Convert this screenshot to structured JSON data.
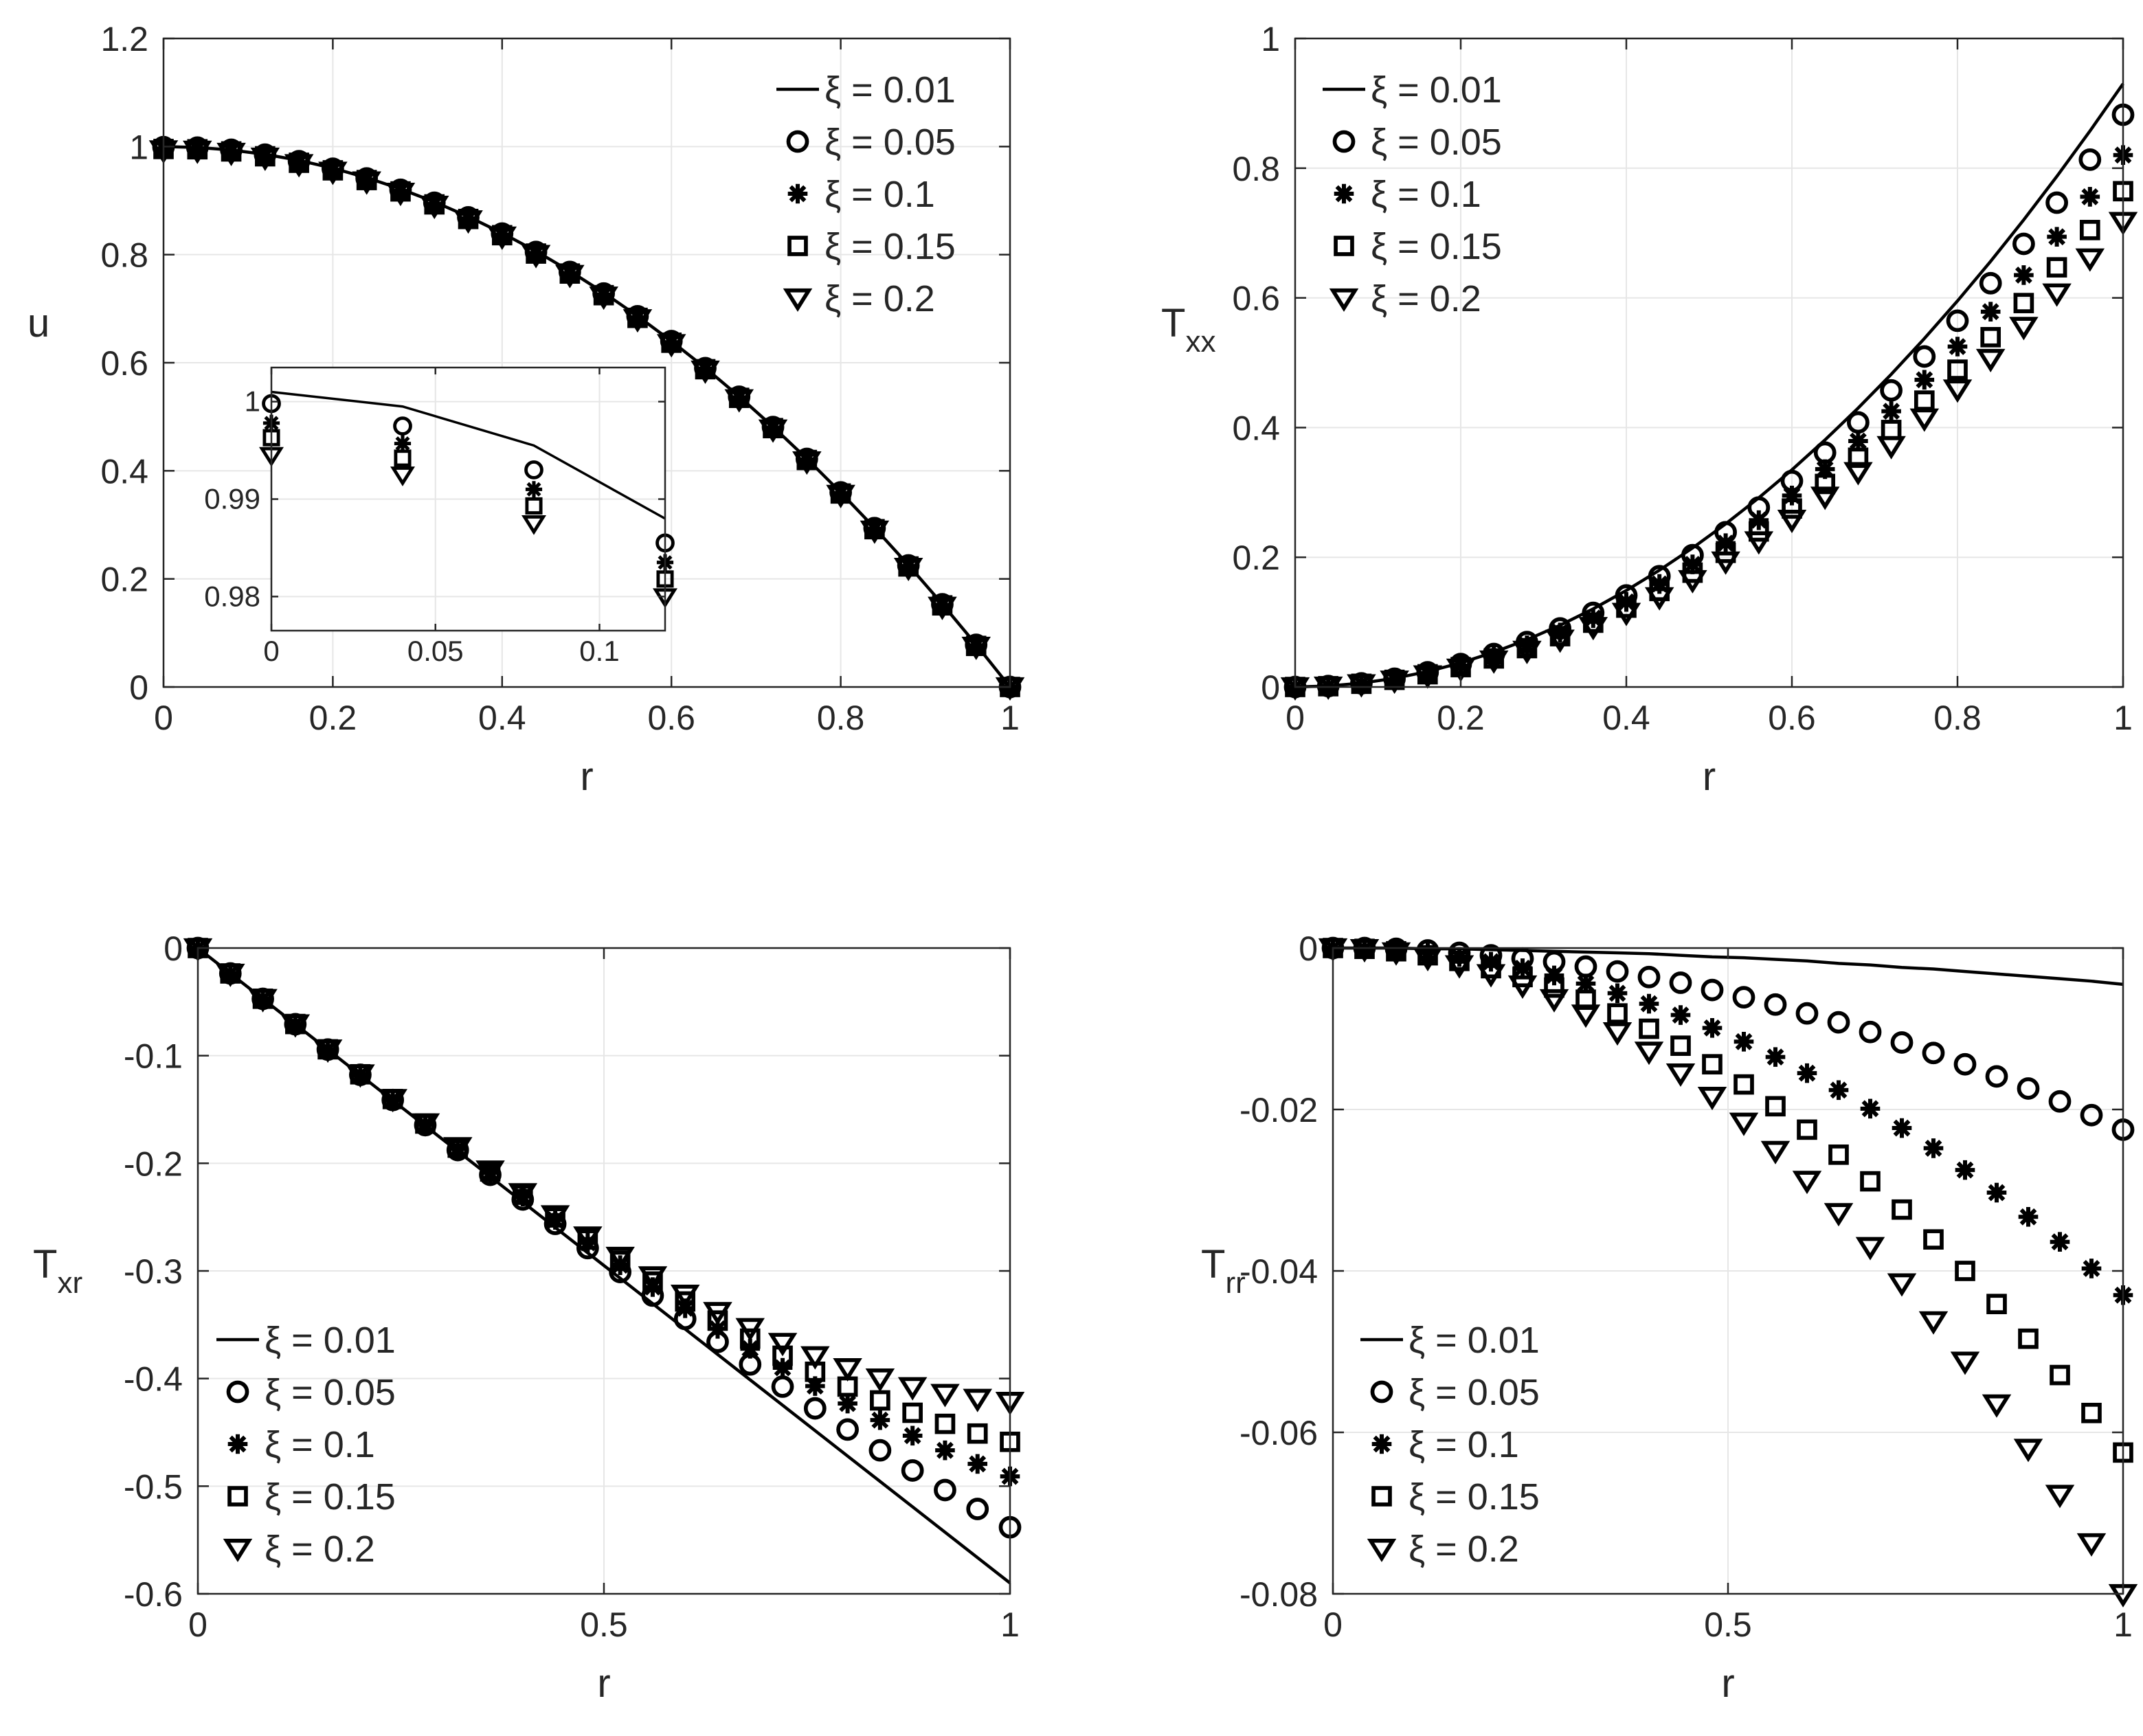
{
  "figure": {
    "title": ""
  },
  "chart_data": [
    {
      "id": "u",
      "type": "line",
      "ylabel": "u",
      "ylabel_sub": "",
      "xlabel": "r",
      "xlim": [
        0,
        1
      ],
      "ylim": [
        0,
        1.2
      ],
      "xticks": [
        0,
        0.2,
        0.4,
        0.6,
        0.8,
        1
      ],
      "xtick_labels": [
        "0",
        "0.2",
        "0.4",
        "0.6",
        "0.8",
        "1"
      ],
      "yticks": [
        0,
        0.2,
        0.4,
        0.6,
        0.8,
        1,
        1.2
      ],
      "ytick_labels": [
        "0",
        "0.2",
        "0.4",
        "0.6",
        "0.8",
        "1",
        "1.2"
      ],
      "grid": true,
      "legend_position": "top-right",
      "x": [
        0,
        0.04,
        0.08,
        0.12,
        0.16,
        0.2,
        0.24,
        0.28,
        0.32,
        0.36,
        0.4,
        0.44,
        0.48,
        0.52,
        0.56,
        0.6,
        0.64,
        0.68,
        0.72,
        0.76,
        0.8,
        0.84,
        0.88,
        0.92,
        0.96,
        1
      ],
      "series": [
        {
          "name": "ξ = 0.01",
          "marker": "line",
          "values": [
            1.0,
            0.9984,
            0.9936,
            0.9856,
            0.9744,
            0.96,
            0.9424,
            0.9216,
            0.8976,
            0.8704,
            0.84,
            0.8064,
            0.7696,
            0.7296,
            0.6864,
            0.64,
            0.5904,
            0.5376,
            0.4816,
            0.4224,
            0.36,
            0.2944,
            0.2256,
            0.1536,
            0.0784,
            0.0
          ]
        },
        {
          "name": "ξ = 0.05",
          "marker": "circle",
          "values": [
            0.999,
            0.998,
            0.994,
            0.985,
            0.973,
            0.959,
            0.941,
            0.92,
            0.896,
            0.869,
            0.839,
            0.805,
            0.768,
            0.728,
            0.686,
            0.64,
            0.59,
            0.537,
            0.481,
            0.422,
            0.36,
            0.294,
            0.225,
            0.153,
            0.078,
            0.0
          ]
        },
        {
          "name": "ξ = 0.1",
          "marker": "star",
          "values": [
            0.9965,
            0.996,
            0.992,
            0.983,
            0.971,
            0.957,
            0.939,
            0.918,
            0.894,
            0.867,
            0.837,
            0.803,
            0.766,
            0.726,
            0.684,
            0.638,
            0.589,
            0.536,
            0.48,
            0.421,
            0.359,
            0.293,
            0.224,
            0.152,
            0.077,
            0.0
          ]
        },
        {
          "name": "ξ = 0.15",
          "marker": "square",
          "values": [
            0.9955,
            0.995,
            0.991,
            0.982,
            0.97,
            0.956,
            0.938,
            0.917,
            0.893,
            0.866,
            0.836,
            0.802,
            0.765,
            0.725,
            0.683,
            0.637,
            0.588,
            0.535,
            0.479,
            0.42,
            0.358,
            0.292,
            0.223,
            0.151,
            0.076,
            0.0
          ]
        },
        {
          "name": "ξ = 0.2",
          "marker": "triangle",
          "values": [
            0.9935,
            0.993,
            0.989,
            0.98,
            0.968,
            0.954,
            0.936,
            0.915,
            0.891,
            0.864,
            0.834,
            0.8,
            0.763,
            0.723,
            0.681,
            0.635,
            0.586,
            0.533,
            0.477,
            0.418,
            0.356,
            0.29,
            0.221,
            0.149,
            0.075,
            0.0
          ]
        }
      ],
      "inset": {
        "xlim": [
          0,
          0.12
        ],
        "ylim": [
          0.9765,
          1.0035
        ],
        "xticks": [
          0,
          0.05,
          0.1
        ],
        "xtick_labels": [
          "0",
          "0.05",
          "0.1"
        ],
        "yticks": [
          0.98,
          0.99,
          1
        ],
        "ytick_labels": [
          "0.98",
          "0.99",
          "1"
        ],
        "x": [
          0,
          0.04,
          0.08,
          0.12
        ],
        "series": [
          {
            "name": "ξ = 0.01",
            "marker": "line",
            "values": [
              1.001,
              0.9995,
              0.9955,
              0.988
            ]
          },
          {
            "name": "ξ = 0.05",
            "marker": "circle",
            "values": [
              0.9998,
              0.9975,
              0.993,
              0.9855
            ]
          },
          {
            "name": "ξ = 0.1",
            "marker": "star",
            "values": [
              0.9978,
              0.9957,
              0.991,
              0.9835
            ]
          },
          {
            "name": "ξ = 0.15",
            "marker": "square",
            "values": [
              0.9963,
              0.9942,
              0.9893,
              0.9818
            ]
          },
          {
            "name": "ξ = 0.2",
            "marker": "triangle",
            "values": [
              0.9945,
              0.9925,
              0.9875,
              0.98
            ]
          }
        ]
      }
    },
    {
      "id": "txx",
      "type": "line",
      "ylabel": "T",
      "ylabel_sub": "xx",
      "xlabel": "r",
      "xlim": [
        0,
        1
      ],
      "ylim": [
        0,
        1
      ],
      "xticks": [
        0,
        0.2,
        0.4,
        0.6,
        0.8,
        1
      ],
      "xtick_labels": [
        "0",
        "0.2",
        "0.4",
        "0.6",
        "0.8",
        "1"
      ],
      "yticks": [
        0,
        0.2,
        0.4,
        0.6,
        0.8,
        1
      ],
      "ytick_labels": [
        "0",
        "0.2",
        "0.4",
        "0.6",
        "0.8",
        "1"
      ],
      "grid": true,
      "legend_position": "top-left",
      "x": [
        0,
        0.04,
        0.08,
        0.12,
        0.16,
        0.2,
        0.24,
        0.28,
        0.32,
        0.36,
        0.4,
        0.44,
        0.48,
        0.52,
        0.56,
        0.6,
        0.64,
        0.68,
        0.72,
        0.76,
        0.8,
        0.84,
        0.88,
        0.92,
        0.96,
        1
      ],
      "series": [
        {
          "name": "ξ = 0.01",
          "marker": "line",
          "values": [
            0.0,
            0.0015,
            0.006,
            0.0134,
            0.0238,
            0.0372,
            0.0536,
            0.0729,
            0.0952,
            0.1205,
            0.1488,
            0.1801,
            0.2143,
            0.2515,
            0.2917,
            0.3348,
            0.381,
            0.4301,
            0.4822,
            0.5373,
            0.5953,
            0.6563,
            0.7203,
            0.7873,
            0.8573,
            0.9302
          ]
        },
        {
          "name": "ξ = 0.05",
          "marker": "circle",
          "values": [
            0.0,
            0.0014,
            0.0056,
            0.0127,
            0.0226,
            0.0353,
            0.0508,
            0.0692,
            0.0903,
            0.1143,
            0.1411,
            0.1708,
            0.2033,
            0.2386,
            0.2767,
            0.3176,
            0.3613,
            0.4079,
            0.4574,
            0.5096,
            0.5647,
            0.6226,
            0.6833,
            0.7468,
            0.8132,
            0.8824
          ]
        },
        {
          "name": "ξ = 0.1",
          "marker": "star",
          "values": [
            0.0,
            0.0013,
            0.0053,
            0.0118,
            0.021,
            0.0328,
            0.0472,
            0.0643,
            0.084,
            0.1063,
            0.1312,
            0.1588,
            0.189,
            0.2218,
            0.2572,
            0.2952,
            0.3359,
            0.3792,
            0.4252,
            0.4737,
            0.5249,
            0.5787,
            0.6351,
            0.6942,
            0.7559,
            0.8202
          ]
        },
        {
          "name": "ξ = 0.15",
          "marker": "square",
          "values": [
            0.0,
            0.0012,
            0.0049,
            0.011,
            0.0196,
            0.0306,
            0.044,
            0.0599,
            0.0783,
            0.0991,
            0.1223,
            0.148,
            0.1762,
            0.2068,
            0.2398,
            0.2752,
            0.3131,
            0.3535,
            0.3963,
            0.4416,
            0.4893,
            0.5394,
            0.592,
            0.6471,
            0.7046,
            0.7645
          ]
        },
        {
          "name": "ξ = 0.2",
          "marker": "triangle",
          "values": [
            0.0,
            0.0011,
            0.0046,
            0.0103,
            0.0184,
            0.0287,
            0.0413,
            0.0562,
            0.0735,
            0.093,
            0.1148,
            0.1389,
            0.1653,
            0.194,
            0.2251,
            0.2583,
            0.2939,
            0.3318,
            0.372,
            0.4145,
            0.4592,
            0.5063,
            0.5557,
            0.6073,
            0.6613,
            0.7176
          ]
        }
      ]
    },
    {
      "id": "txr",
      "type": "line",
      "ylabel": "T",
      "ylabel_sub": "xr",
      "xlabel": "r",
      "xlim": [
        0,
        1
      ],
      "ylim": [
        -0.6,
        0
      ],
      "xticks": [
        0,
        0.5,
        1
      ],
      "xtick_labels": [
        "0",
        "0.5",
        "1"
      ],
      "yticks": [
        -0.6,
        -0.5,
        -0.4,
        -0.3,
        -0.2,
        -0.1,
        0
      ],
      "ytick_labels": [
        "-0.6",
        "-0.5",
        "-0.4",
        "-0.3",
        "-0.2",
        "-0.1",
        "0"
      ],
      "grid": true,
      "legend_position": "bottom-left",
      "x": [
        0,
        0.04,
        0.08,
        0.12,
        0.16,
        0.2,
        0.24,
        0.28,
        0.32,
        0.36,
        0.4,
        0.44,
        0.48,
        0.52,
        0.56,
        0.6,
        0.64,
        0.68,
        0.72,
        0.76,
        0.8,
        0.84,
        0.88,
        0.92,
        0.96,
        1
      ],
      "series": [
        {
          "name": "ξ = 0.01",
          "marker": "line",
          "values": [
            0.0,
            -0.0236,
            -0.0472,
            -0.0708,
            -0.0944,
            -0.118,
            -0.1416,
            -0.1652,
            -0.1888,
            -0.2124,
            -0.236,
            -0.2596,
            -0.2832,
            -0.3068,
            -0.3304,
            -0.354,
            -0.3776,
            -0.4012,
            -0.4248,
            -0.4484,
            -0.472,
            -0.4956,
            -0.5192,
            -0.5428,
            -0.5664,
            -0.59
          ]
        },
        {
          "name": "ξ = 0.05",
          "marker": "circle",
          "values": [
            0.0,
            -0.0236,
            -0.0472,
            -0.0708,
            -0.0943,
            -0.1178,
            -0.1412,
            -0.1645,
            -0.1877,
            -0.2107,
            -0.2336,
            -0.2563,
            -0.2788,
            -0.301,
            -0.3229,
            -0.3446,
            -0.3659,
            -0.3869,
            -0.4075,
            -0.4277,
            -0.4474,
            -0.4667,
            -0.4854,
            -0.5036,
            -0.5212,
            -0.5382
          ]
        },
        {
          "name": "ξ = 0.1",
          "marker": "star",
          "values": [
            0.0,
            -0.0236,
            -0.0472,
            -0.0707,
            -0.0942,
            -0.1175,
            -0.1407,
            -0.1637,
            -0.1864,
            -0.2088,
            -0.2309,
            -0.2526,
            -0.2739,
            -0.2947,
            -0.315,
            -0.3347,
            -0.3538,
            -0.3723,
            -0.39,
            -0.407,
            -0.4232,
            -0.4386,
            -0.4531,
            -0.4667,
            -0.4793,
            -0.4909
          ]
        },
        {
          "name": "ξ = 0.15",
          "marker": "square",
          "values": [
            0.0,
            -0.0236,
            -0.0471,
            -0.0706,
            -0.0941,
            -0.1173,
            -0.1403,
            -0.1631,
            -0.1855,
            -0.2076,
            -0.2292,
            -0.2503,
            -0.2708,
            -0.2907,
            -0.3099,
            -0.3284,
            -0.3461,
            -0.3629,
            -0.3788,
            -0.3937,
            -0.4075,
            -0.4203,
            -0.4318,
            -0.4421,
            -0.4511,
            -0.4588
          ]
        },
        {
          "name": "ξ = 0.2",
          "marker": "triangle",
          "values": [
            0.0,
            -0.0236,
            -0.0471,
            -0.0706,
            -0.094,
            -0.1171,
            -0.14,
            -0.1626,
            -0.1847,
            -0.2064,
            -0.2275,
            -0.248,
            -0.2677,
            -0.2866,
            -0.3047,
            -0.3218,
            -0.3379,
            -0.3528,
            -0.3666,
            -0.379,
            -0.3901,
            -0.3997,
            -0.4077,
            -0.414,
            -0.4186,
            -0.4214
          ]
        }
      ]
    },
    {
      "id": "trr",
      "type": "line",
      "ylabel": "T",
      "ylabel_sub": "rr",
      "xlabel": "r",
      "xlim": [
        0,
        1
      ],
      "ylim": [
        -0.08,
        0
      ],
      "xticks": [
        0,
        0.5,
        1
      ],
      "xtick_labels": [
        "0",
        "0.5",
        "1"
      ],
      "yticks": [
        -0.08,
        -0.06,
        -0.04,
        -0.02,
        0
      ],
      "ytick_labels": [
        "-0.08",
        "-0.06",
        "-0.04",
        "-0.02",
        "0"
      ],
      "grid": true,
      "legend_position": "bottom-left",
      "x": [
        0,
        0.04,
        0.08,
        0.12,
        0.16,
        0.2,
        0.24,
        0.28,
        0.32,
        0.36,
        0.4,
        0.44,
        0.48,
        0.52,
        0.56,
        0.6,
        0.64,
        0.68,
        0.72,
        0.76,
        0.8,
        0.84,
        0.88,
        0.92,
        0.96,
        1
      ],
      "series": [
        {
          "name": "ξ = 0.01",
          "marker": "line",
          "values": [
            0.0,
            -0.0,
            -0.0,
            -0.0001,
            -0.0001,
            -0.0002,
            -0.0003,
            -0.0004,
            -0.0005,
            -0.0006,
            -0.0007,
            -0.0009,
            -0.0011,
            -0.0012,
            -0.0014,
            -0.0016,
            -0.0019,
            -0.0021,
            -0.0024,
            -0.0026,
            -0.0029,
            -0.0032,
            -0.0035,
            -0.0038,
            -0.0041,
            -0.0045
          ]
        },
        {
          "name": "ξ = 0.05",
          "marker": "circle",
          "values": [
            0.0,
            -0.0,
            -0.0001,
            -0.0003,
            -0.0006,
            -0.0009,
            -0.0013,
            -0.0017,
            -0.0023,
            -0.0029,
            -0.0036,
            -0.0043,
            -0.0052,
            -0.0061,
            -0.007,
            -0.0081,
            -0.0092,
            -0.0104,
            -0.0117,
            -0.013,
            -0.0144,
            -0.0159,
            -0.0174,
            -0.019,
            -0.0207,
            -0.0225
          ]
        },
        {
          "name": "ξ = 0.1",
          "marker": "star",
          "values": [
            0.0,
            -0.0001,
            -0.0003,
            -0.0006,
            -0.0011,
            -0.0017,
            -0.0025,
            -0.0034,
            -0.0044,
            -0.0056,
            -0.0069,
            -0.0083,
            -0.0099,
            -0.0116,
            -0.0135,
            -0.0155,
            -0.0176,
            -0.0199,
            -0.0223,
            -0.0248,
            -0.0275,
            -0.0303,
            -0.0333,
            -0.0364,
            -0.0397,
            -0.043
          ]
        },
        {
          "name": "ξ = 0.15",
          "marker": "square",
          "values": [
            0.0,
            -0.0001,
            -0.0004,
            -0.0009,
            -0.0016,
            -0.0025,
            -0.0036,
            -0.0049,
            -0.0064,
            -0.0081,
            -0.01,
            -0.0121,
            -0.0144,
            -0.0169,
            -0.0196,
            -0.0225,
            -0.0256,
            -0.0289,
            -0.0324,
            -0.0361,
            -0.04,
            -0.0441,
            -0.0484,
            -0.0529,
            -0.0576,
            -0.0625
          ]
        },
        {
          "name": "ξ = 0.2",
          "marker": "triangle",
          "values": [
            0.0,
            -0.0001,
            -0.0005,
            -0.0012,
            -0.0021,
            -0.0032,
            -0.0046,
            -0.0063,
            -0.0082,
            -0.0104,
            -0.0128,
            -0.0155,
            -0.0184,
            -0.0216,
            -0.0251,
            -0.0288,
            -0.0328,
            -0.037,
            -0.0415,
            -0.0462,
            -0.0512,
            -0.0565,
            -0.062,
            -0.0677,
            -0.0737,
            -0.08
          ]
        }
      ]
    }
  ]
}
